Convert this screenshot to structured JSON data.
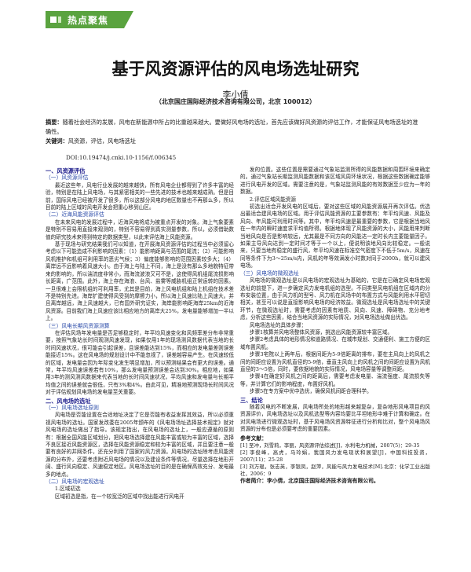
{
  "header": {
    "section_label": "热点聚焦"
  },
  "article": {
    "title": "基于风资源评估的风电场选址研究",
    "author": "李小倩",
    "affiliation": "（北京国庄国际经济技术咨询有限公司，北京  100012）",
    "abstract_label": "摘要：",
    "abstract": "随着社会经济的发展，风电在新能源中所占的比重越来越大。要做好风电场的选址，首先应该做好风资源的评估工作，才能保证风电场选址的准确性。",
    "keywords_label": "关键词：",
    "keywords": "风资源，评估，风电场选址",
    "doi": "DOI:10.19474/j.cnki.10-1156/f.006345"
  },
  "left_column": [
    {
      "type": "h1",
      "text": "一、风资源评估"
    },
    {
      "type": "h2",
      "text": "（一）风资源评估"
    },
    {
      "type": "p",
      "text": "最近这些年，风电行业发展的越来越快，所有风电企业都得到了许多丰富的经验，特别是在陆上风电场，与其紧密相关的一些先进的技术也越来越成熟。但是目前，国际风电已经被开发了很多，所以这部分风电的地区数量也不再那么多，所以目前的陆上区域的风电开发会把重心移到山区。"
    },
    {
      "type": "h2",
      "text": "（二）近海风能资源评估"
    },
    {
      "type": "p",
      "text": "在未来风电的发展过程中，近海风电将成为被重点开发的对象。海上气象要素是特别不容易用直接来观测的，特别不容易得到真实测量参数，所以，必须借助数值的研究技术来得到特定的数据类型，以此来评估海上风能资源。"
    },
    {
      "type": "p",
      "text": "基于现场与研究结果我们可以知道，在开展海风资源评估的过程当中必须留心考虑以下可能造成不利影响的因素：（1）能影响距离与范围的尾流；（2）可能影响风机推护和机组可利用率的恶劣气候；3）偏度能够影响的范围因素较多大；（4）离岸远不远影响着风速大小。由于海上与陆上不同，海上是没有那么多地貌特征带来的影响的，所以湍流度非常小，而海流波浪又可不是，这使得风机组尾流损影响长距离，广范围。此外，海上存在海浪、台风、盐雾等威胁机组正常运转的因素。一旦很难上会限机组的可利用率，尤其是目前，海上风电机组和陆上机组在技术差不是特别先进。海岸扩建使得风受到的摩擦力小，所以海上风速比陆上风速大。并且离岸越远，海上风速越大，已有国外研究证实，海岸能影响距海岸25km的近海风资源。目前我们海上风速应该比相应地方的离岸大25%，发电量能够增加一半以上。"
    },
    {
      "type": "h2",
      "text": "（三）风电长期风资源测算"
    },
    {
      "type": "p",
      "text": "在评估风场年发电量是否足够稳定时，年平均风速变化和风频率差分布非常重要，按照气象站长时间观测风速发现，如果仅用1年的现场测风数据代表当地的长时间风速状况，很可能会引起误差，且误差能达到15%，而相应的发电量差则误差能接近15%。这在风电场的规划设计中不能忽视了，误差越容易产生。在风速较低的区域，发电量会因为年际变化发生明显增加，所以预测结果会有更大的误差。通常，年平均风速误差若有10%，那么发电量预测误差会达到30%。相应地，如果用3年的测风测风数据来代表当地的长时间风速状况，平均风速和发电量与长期平均值之间的误差就会很低，只有3%和4%。由此可见，精准地预测现场长时间风况对于评估规划风电场的发电量至关重要。"
    },
    {
      "type": "h1",
      "text": "二、风电场的选址"
    },
    {
      "type": "h2",
      "text": "（一）风电场选址原则"
    },
    {
      "type": "p",
      "text": "风电场是否能设置在合适地址决定了它是否能有收益发挥其效益，所以必须重视风电场的选址。国家发改委在2005年颁布的《风电场场址选择技术规定》就对风电场的选址做出了指导。该规定指出，在风电场的选址上，一般应遵循的原则有：根据全国风能区域划分，把风电场选择建在风能丰富或较为丰富的区域，选择不良区接近风能资源区，选择在风能资源稳定和较为丰富的区域，并且要注意一般要有良好的并网条件，还充分利用了国家的风力资源。风电场的选址除考虑风能资源的分布外，还要考虑附近风电场的情况以及建设条件等情况，尽量选择在地形开阔、盛行风向稳定、风速稳定地区。风电场选址的目的是在确保高效充分、发电最多的地点。"
    },
    {
      "type": "h2",
      "text": "（二）风电场的宏观选址"
    },
    {
      "type": "p",
      "text": "1.区域初选"
    },
    {
      "type": "p",
      "text": "区域初选是指，在一个较宽泛的区域中找出能进行风电开"
    }
  ],
  "right_column": [
    {
      "type": "p",
      "text": "发的位置。这些位置是需要通过气象站监测所得的风能数据和周围环境来确定的。通过气象站长期监测风能数据和该区域风周环境状况，根据这些数据确定能够进行风电开发的区域。需要注意的是，气象站监测风能的有效数据至少应为一年的数据。"
    },
    {
      "type": "p",
      "text": "2.评估区域风能资源"
    },
    {
      "type": "p",
      "text": "初选出适合开发风电的区域后，要对这些区域的风能资源展开再次评估。优选出最适合建风电场的区域。用于评估风能资源的主要参数有：年平均风速、风能及风向、年风能可利用时间等。其中，年平均风速是最重要的参数，它是根据当地风在一年内的瞬时速度求平均值所得。根据地体现了风能资源的大小，风能用来判断当地风向是否是影响较远，尤其最是不同方向的风能达一定时长内主要能量因子。如果主导风向达到一定时间才等于一个以上，便说明该地风向比较稳定。一般说来，只要当地有稳定的盛行风，年平均风速在标准空气密度下不低于5m/s，风速在同等条件下为3～25m/s内，风机的年等效满发小时数对同于2000h，就可以建风电场。"
    },
    {
      "type": "h2",
      "text": "（三）风电场的微观选址"
    },
    {
      "type": "p",
      "text": "风电场的微观选址是以风电场的宏观选址为基础的，它是在已确定风电场宏观选址的前提下，进一步确定风力发电机组的选型。不同类型风电机组在区域内的分布安装位置，由于风力机的型号、风力机在风场中的布置方式与风能利用水平密切相关，甚至可以说是直接影响风电场的经济效益。微观选址是风电场选址中的关键环节，在微观选址时，需要考虑的因素有地质、风向、风速、障碍物、充分地考虑，分析这些因素，结合当地风资源的实际情况，对风电场选址做出优选。"
    },
    {
      "type": "p",
      "text": "风电场选址的具体步骤："
    },
    {
      "type": "p",
      "text": "步骤1核算并风电场整体风资源，挑选出风能资源较丰富区域。"
    },
    {
      "type": "p",
      "text": "步骤2考虑具体的地形情况和道路情况、在城市规划、交通便利、施工方便的区域布置风机。"
    },
    {
      "type": "p",
      "text": "步骤3宅院以上两年后，根据间距为5-9倍距离的排布，要在主风向上的风机之间的间距应设置为风机直径的5-9倍，垂直主风向上的风机之间的间距应设置为风机直径的3～5倍，同时，要依据地貌的实际情况，风电场容量等调整间距。"
    },
    {
      "type": "p",
      "text": "步骤4在确定好风机之间的距离后，需要考虑发电量、湍流强度、尾流损失等等，并计算它们的影响程度，布置好风机。"
    },
    {
      "type": "p",
      "text": "步骤5在专方案中优中选优，确保风机间距合理科学。"
    },
    {
      "type": "h1",
      "text": "三、结论"
    },
    {
      "type": "p",
      "text": "随着风电的不断发展，风电场所处的地形越来越复杂，复杂地形风电项目的风资源评价，风电场选址以及风机选型等内容均要比平坦地形中难于计算和确定。在对风电场进行微观选址时，基于风电场风资源特征进行分析和比对，整个风电场风资源的分布也是必须要考虑的重要因素。"
    }
  ],
  "references": {
    "heading": "参考文献：",
    "items": [
      "[1] 至冲，刘雪莉，李丽，风资源评估综述[J]，水利电力机械，2007(5)：29-35",
      "[2] 李俊峰，高虎，马玲娟，我国风力发电现状和展望[J]，中国科技投资，2007(11)：25-28",
      "[3] 刘万琨，张志英，李银凤，赵萍，风能与风力发电技术[M].北京：化学工业出版社，2006：9"
    ]
  },
  "author_bio": {
    "label": "作者简介：",
    "text": "李小倩，北京国庄国际经济技术咨询有限公司。"
  }
}
